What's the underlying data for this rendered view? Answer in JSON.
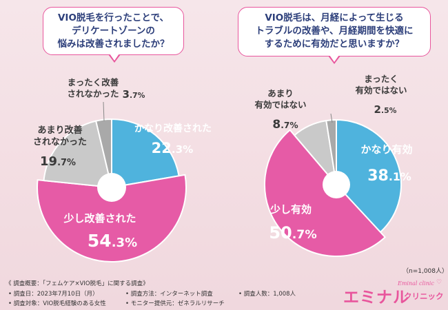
{
  "colors": {
    "blue": "#4fb3dd",
    "pink": "#e65ba6",
    "gray": "#c9c9c9",
    "dark_gray": "#a9a9a9",
    "text_dark": "#3a3a3a",
    "navy": "#2c3e7a",
    "accent": "#e8559c"
  },
  "chart_data": [
    {
      "type": "pie",
      "title_lines": [
        "VIO脱毛を行ったことで、",
        "デリケートゾーンの",
        "悩みは改善されましたか？"
      ],
      "series": [
        {
          "label_lines": [
            "かなり改善された"
          ],
          "value": 22.3,
          "value_text": "22.3%"
        },
        {
          "label_lines": [
            "少し改善された"
          ],
          "value": 54.3,
          "value_text": "54.3%"
        },
        {
          "label_lines": [
            "あまり改善",
            "されなかった"
          ],
          "value": 19.7,
          "value_text": "19.7%"
        },
        {
          "label_lines": [
            "まったく改善",
            "されなかった"
          ],
          "value": 3.7,
          "value_text": "3.7%"
        }
      ]
    },
    {
      "type": "pie",
      "title_lines": [
        "VIO脱毛は、月経によって生じる",
        "トラブルの改善や、月経期間を快適に",
        "するために有効だと思いますか？"
      ],
      "series": [
        {
          "label_lines": [
            "かなり有効"
          ],
          "value": 38.1,
          "value_text": "38.1%"
        },
        {
          "label_lines": [
            "少し有効"
          ],
          "value": 50.7,
          "value_text": "50.7%"
        },
        {
          "label_lines": [
            "あまり",
            "有効ではない"
          ],
          "value": 8.7,
          "value_text": "8.7%"
        },
        {
          "label_lines": [
            "まったく",
            "有効ではない"
          ],
          "value": 2.5,
          "value_text": "2.5%"
        }
      ]
    }
  ],
  "sample_size": "（n=1,008人）",
  "survey": {
    "heading": "《 調査概要：「フェムケア×VIO脱毛」に関する調査》",
    "date": "• 調査日：2023年7月10日（月）",
    "target": "• 調査対象：VIO脱毛経験のある女性",
    "method": "• 調査方法：インターネット調査",
    "provider": "• モニター提供元：ゼネラルリサーチ",
    "count": "• 調査人数：1,008人"
  },
  "brand": {
    "name_main": "エミナル",
    "name_sub": "クリニック",
    "tagline": "Eminal clinic"
  }
}
